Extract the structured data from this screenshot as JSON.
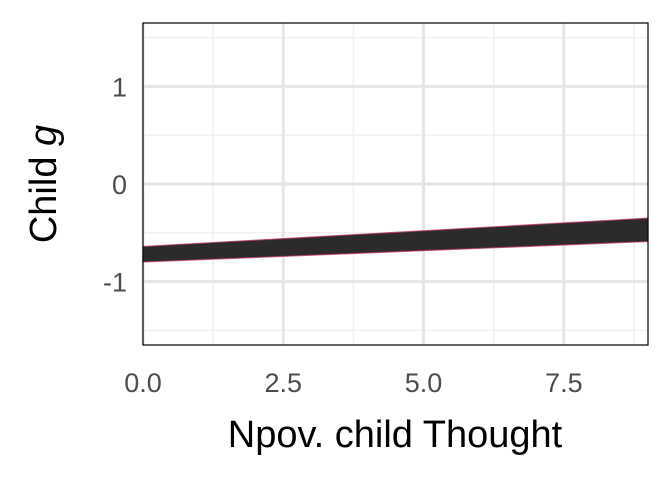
{
  "chart_data": {
    "type": "line",
    "xlabel": "Npov. child Thought",
    "ylabel_prefix": "Child ",
    "ylabel_italic": "g",
    "xlim": [
      0,
      9
    ],
    "ylim": [
      -1.65,
      1.65
    ],
    "x_ticks": [
      0,
      2.5,
      5,
      7.5
    ],
    "x_tick_labels": [
      "0.0",
      "2.5",
      "5.0",
      "7.5"
    ],
    "x_minor_ticks": [
      1.25,
      3.75,
      6.25,
      8.75
    ],
    "y_ticks": [
      -1,
      0,
      1
    ],
    "y_tick_labels": [
      "-1",
      "0",
      "1"
    ],
    "y_minor_ticks": [
      -1.5,
      -0.5,
      0.5,
      1.5
    ],
    "grid": true,
    "series": [
      {
        "x": [
          0,
          9
        ],
        "y": [
          -0.72,
          -0.47
        ],
        "band_lower": [
          -0.8,
          -0.59
        ],
        "band_upper": [
          -0.64,
          -0.35
        ],
        "color": "#2b2b2b",
        "edge_color": "#c0306a"
      }
    ]
  }
}
